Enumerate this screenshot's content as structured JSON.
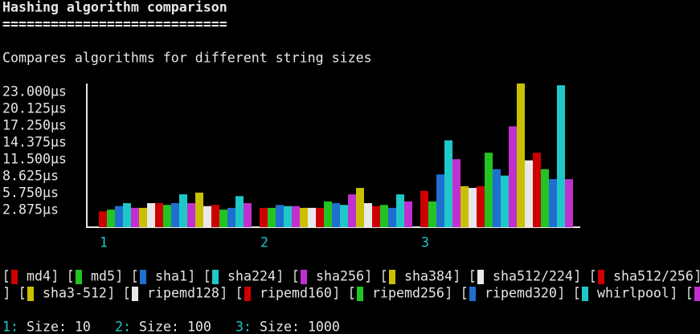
{
  "chart_data": {
    "type": "bar",
    "title": "Hashing algorithm comparison",
    "title_underline": "============================",
    "subtitle": "Compares algorithms for different string sizes",
    "categories": [
      "1",
      "2",
      "3"
    ],
    "ylim": [
      0,
      24.5
    ],
    "yticks": [
      {
        "value": 2.875,
        "label": "2.875µs"
      },
      {
        "value": 5.75,
        "label": "5.750µs"
      },
      {
        "value": 8.625,
        "label": "8.625µs"
      },
      {
        "value": 11.5,
        "label": "11.500µs"
      },
      {
        "value": 14.375,
        "label": "14.375µs"
      },
      {
        "value": 17.25,
        "label": "17.250µs"
      },
      {
        "value": 20.125,
        "label": "20.125µs"
      },
      {
        "value": 23,
        "label": "23.000µs"
      }
    ],
    "series": [
      {
        "name": "md4",
        "color": "#cd0000",
        "values": [
          2.7,
          3.3,
          6.2
        ]
      },
      {
        "name": "md5",
        "color": "#22c322",
        "values": [
          3.0,
          3.3,
          4.4
        ]
      },
      {
        "name": "sha1",
        "color": "#1f6fd0",
        "values": [
          3.6,
          3.8,
          9.0
        ]
      },
      {
        "name": "sha224",
        "color": "#1fc8c8",
        "values": [
          4.1,
          3.6,
          14.8
        ]
      },
      {
        "name": "sha256",
        "color": "#c030d0",
        "values": [
          3.3,
          3.6,
          11.6
        ]
      },
      {
        "name": "sha384",
        "color": "#c8c000",
        "values": [
          3.3,
          3.3,
          7.0
        ]
      },
      {
        "name": "sha512/224",
        "color": "#e8e8e8",
        "values": [
          4.1,
          3.3,
          6.7
        ]
      },
      {
        "name": "sha512/256",
        "color": "#cd0000",
        "values": [
          4.1,
          3.3,
          7.0
        ]
      },
      {
        "color": "#22c322",
        "values": [
          3.8,
          4.4,
          12.7
        ]
      },
      {
        "color": "#1f6fd0",
        "values": [
          4.1,
          4.1,
          9.9
        ]
      },
      {
        "color": "#1fc8c8",
        "values": [
          5.6,
          3.8,
          8.8
        ]
      },
      {
        "color": "#c030d0",
        "values": [
          4.1,
          5.6,
          17.2
        ]
      },
      {
        "name": "sha3-512",
        "color": "#c8c000",
        "values": [
          5.9,
          6.7,
          24.5
        ]
      },
      {
        "name": "ripemd128",
        "color": "#e8e8e8",
        "values": [
          3.6,
          4.1,
          11.4
        ]
      },
      {
        "name": "ripemd160",
        "color": "#cd0000",
        "values": [
          3.8,
          3.6,
          12.7
        ]
      },
      {
        "name": "ripemd256",
        "color": "#22c322",
        "values": [
          3.0,
          3.8,
          9.9
        ]
      },
      {
        "name": "ripemd320",
        "color": "#1f6fd0",
        "values": [
          3.3,
          3.3,
          8.2
        ]
      },
      {
        "name": "whirlpool",
        "color": "#1fc8c8",
        "values": [
          5.3,
          5.6,
          24.2
        ]
      },
      {
        "color": "#c030d0",
        "values": [
          4.1,
          4.4,
          8.2
        ]
      }
    ],
    "footer": [
      {
        "key": "1:",
        "text": "Size: 10"
      },
      {
        "key": "2:",
        "text": "Size: 100"
      },
      {
        "key": "3:",
        "text": "Size: 1000"
      }
    ]
  }
}
